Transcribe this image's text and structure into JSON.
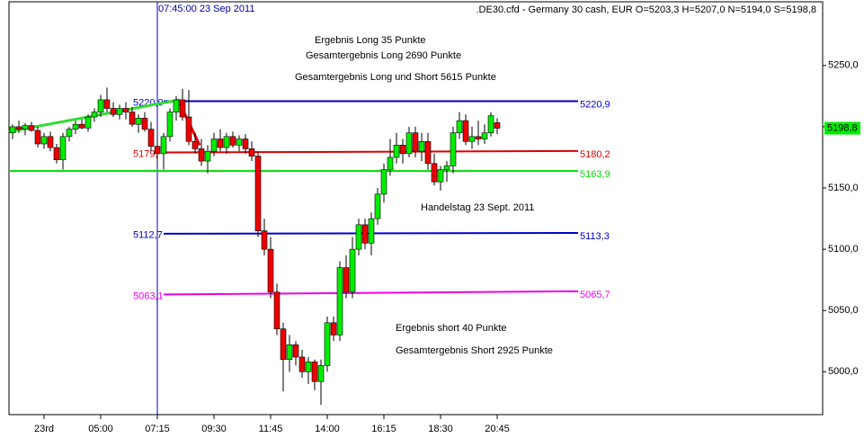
{
  "chart_data": {
    "type": "candlestick",
    "title": ".DE30.cfd - Germany 30 cash, EUR O=5203,3 H=5207,0 N=5194,0 S=5198,8",
    "cursor_label": "07:45:00 23 Sep 2011",
    "categories": [
      null,
      null,
      null,
      null,
      null,
      "23rd",
      null,
      null,
      null,
      null,
      null,
      null,
      null,
      null,
      "05:00",
      null,
      null,
      null,
      null,
      null,
      null,
      null,
      null,
      "07:15",
      null,
      null,
      null,
      null,
      null,
      null,
      null,
      null,
      "09:30",
      null,
      null,
      null,
      null,
      null,
      null,
      null,
      null,
      "11:45",
      null,
      null,
      null,
      null,
      null,
      null,
      null,
      null,
      "14:00",
      null,
      null,
      null,
      null,
      null,
      null,
      null,
      null,
      "16:15",
      null,
      null,
      null,
      null,
      null,
      null,
      null,
      null,
      "18:30",
      null,
      null,
      null,
      null,
      null,
      null,
      null,
      null,
      "20:45"
    ],
    "open": [
      5195,
      5200,
      5198,
      5201,
      5197,
      5186,
      5192,
      5183,
      5173,
      5192,
      5198,
      5202,
      5199,
      5208,
      5212,
      5222,
      5215,
      5210,
      5215,
      5212,
      5202,
      5207,
      5198,
      5184,
      5178,
      5192,
      5212,
      5222,
      5208,
      5188,
      5182,
      5172,
      5180,
      5190,
      5183,
      5192,
      5185,
      5190,
      5182,
      5176,
      5115,
      5100,
      5065,
      5035,
      5010,
      5022,
      5012,
      5000,
      5008,
      4992,
      5005,
      5040,
      5030,
      5085,
      5065,
      5100,
      5120,
      5105,
      5125,
      5145,
      5165,
      5175,
      5185,
      5178,
      5195,
      5180,
      5188,
      5170,
      5155,
      5165,
      5168,
      5195,
      5205,
      5188,
      5192,
      5190,
      5195,
      5203.3
    ],
    "high": [
      5202,
      5205,
      5203,
      5204,
      5200,
      5195,
      5196,
      5186,
      5195,
      5200,
      5205,
      5206,
      5210,
      5215,
      5226,
      5232,
      5220,
      5218,
      5220,
      5216,
      5210,
      5212,
      5204,
      5190,
      5195,
      5215,
      5225,
      5231,
      5230,
      5195,
      5190,
      5185,
      5195,
      5198,
      5195,
      5196,
      5193,
      5194,
      5188,
      5180,
      5125,
      5110,
      5072,
      5040,
      5030,
      5025,
      5018,
      5012,
      5010,
      5010,
      5045,
      5045,
      5090,
      5095,
      5110,
      5125,
      5125,
      5130,
      5150,
      5170,
      5190,
      5195,
      5190,
      5200,
      5200,
      5195,
      5195,
      5178,
      5168,
      5172,
      5200,
      5212,
      5210,
      5200,
      5205,
      5202,
      5212,
      5207
    ],
    "low": [
      5190,
      5195,
      5193,
      5196,
      5183,
      5182,
      5180,
      5170,
      5165,
      5188,
      5194,
      5198,
      5196,
      5204,
      5208,
      5212,
      5208,
      5206,
      5206,
      5200,
      5195,
      5196,
      5180,
      5170,
      5165,
      5188,
      5205,
      5205,
      5185,
      5178,
      5168,
      5162,
      5176,
      5180,
      5178,
      5183,
      5180,
      5178,
      5172,
      5110,
      5095,
      5060,
      5030,
      4984,
      5000,
      5005,
      4995,
      4990,
      4985,
      4973,
      5000,
      5025,
      5025,
      5060,
      5060,
      5095,
      5100,
      5095,
      5120,
      5138,
      5160,
      5170,
      5170,
      5175,
      5175,
      5172,
      5165,
      5152,
      5148,
      5155,
      5162,
      5190,
      5185,
      5182,
      5185,
      5186,
      5192,
      5194
    ],
    "close": [
      5200,
      5198,
      5201,
      5197,
      5186,
      5192,
      5183,
      5173,
      5192,
      5198,
      5202,
      5199,
      5208,
      5212,
      5222,
      5215,
      5210,
      5215,
      5212,
      5202,
      5207,
      5198,
      5184,
      5178,
      5192,
      5212,
      5222,
      5208,
      5188,
      5182,
      5172,
      5180,
      5190,
      5183,
      5192,
      5185,
      5190,
      5182,
      5176,
      5115,
      5100,
      5065,
      5035,
      5010,
      5022,
      5012,
      5000,
      5008,
      4992,
      5005,
      5040,
      5030,
      5085,
      5065,
      5100,
      5120,
      5105,
      5125,
      5145,
      5165,
      5175,
      5185,
      5178,
      5195,
      5180,
      5188,
      5170,
      5155,
      5165,
      5168,
      5195,
      5205,
      5188,
      5192,
      5190,
      5195,
      5209,
      5198.8
    ],
    "up_color": "#00ee00",
    "down_color": "#ee0000",
    "ylim": [
      4965,
      5302
    ],
    "yticks": [
      {
        "value": 5000,
        "label": "5000,0"
      },
      {
        "value": 5050,
        "label": "5050,0"
      },
      {
        "value": 5100,
        "label": "5100,0"
      },
      {
        "value": 5150,
        "label": "5150,0"
      },
      {
        "value": 5200,
        "label": "5200,0"
      },
      {
        "value": 5250,
        "label": "5250,0"
      }
    ],
    "last_price": {
      "value": 5198.8,
      "label": "5198,8"
    },
    "lines": [
      {
        "color": "#0000cc",
        "start": 5220.9,
        "end": 5220.9,
        "start_label": "5220,9",
        "end_label": "5220,9"
      },
      {
        "color": "#dd0000",
        "start": 5179,
        "end": 5180.2,
        "start_label": "5179,",
        "end_label": "5180,2"
      },
      {
        "color": "#00dd00",
        "start": 5163.9,
        "end": 5163.9,
        "end_label": "5163,9"
      },
      {
        "color": "#0000cc",
        "start": 5112.7,
        "end": 5113.3,
        "start_label": "5112,7",
        "end_label": "5113,3"
      },
      {
        "color": "#ee00ee",
        "start": 5063.1,
        "end": 5065.7,
        "start_label": "5063,1",
        "end_label": "5065,7"
      },
      {
        "color": "#33dd33",
        "start": 5196,
        "end": 5222
      },
      {
        "color": "#ee0000",
        "start": 5219,
        "end": 5185
      }
    ],
    "annotations": [
      "Ergebnis Long 35 Punkte",
      "Gesamtergebnis Long 2690 Punkte",
      "Gesamtergebnis Long und Short 5615 Punkte",
      "Handelstag 23 Sept. 2011",
      "Ergebnis short 40 Punkte",
      "Gesamtergebnis Short 2925 Punkte"
    ]
  }
}
